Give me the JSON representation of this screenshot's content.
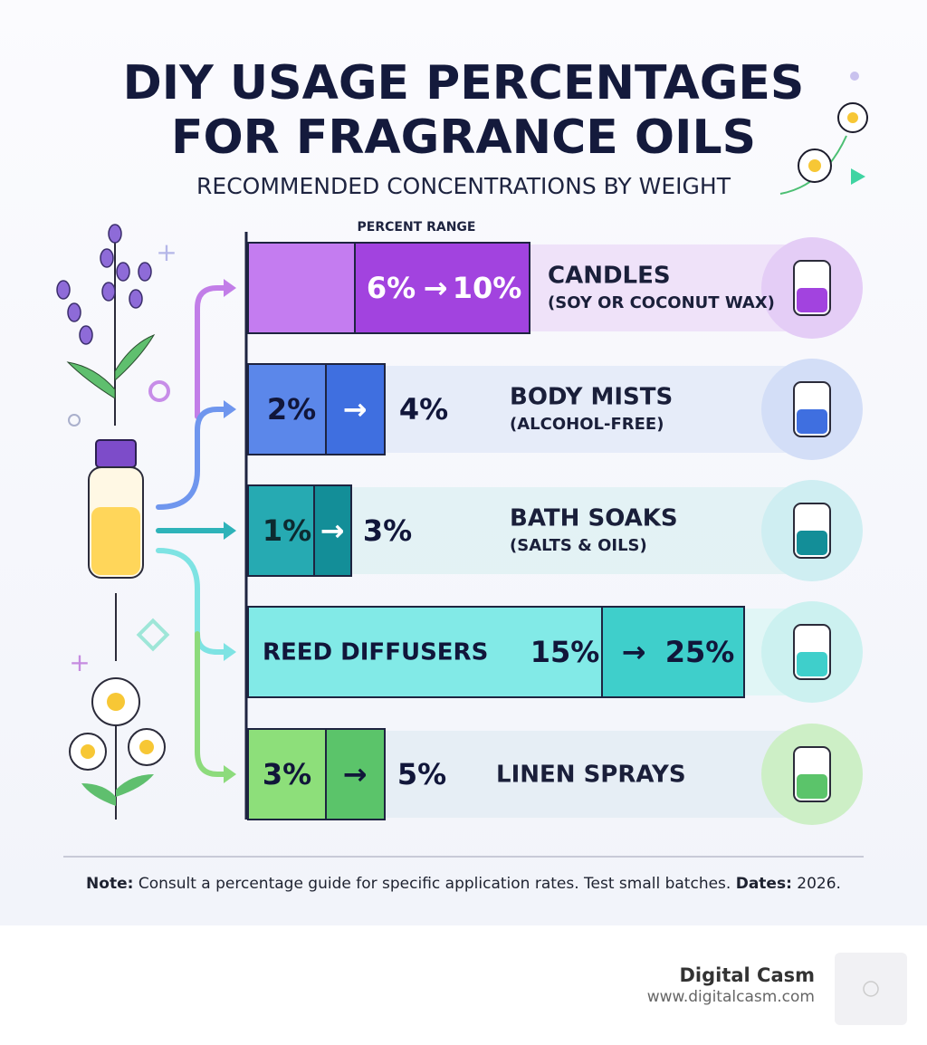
{
  "header": {
    "title_lines": [
      "DIY USAGE PERCENTAGES",
      "FOR FRAGRANCE OILS"
    ],
    "subtitle": "RECOMMENDED CONCENTRATIONS BY WEIGHT"
  },
  "axis_label": "PERCENT RANGE",
  "items": [
    {
      "name": "CANDLES",
      "detail": "(SOY OR COCONUT WAX)",
      "low": "6%",
      "arrow": "→",
      "high": "10%"
    },
    {
      "name": "BODY MISTS",
      "detail": "(ALCOHOL-FREE)",
      "low": "2%",
      "arrow": "→",
      "high": "4%"
    },
    {
      "name": "BATH SOAKS",
      "detail": "(SALTS & OILS)",
      "low": "1%",
      "arrow": "→",
      "high": "3%"
    },
    {
      "name": "REED DIFFUSERS",
      "low": "15%",
      "arrow": "→",
      "high": "25%"
    },
    {
      "name": "LINEN SPRAYS",
      "low": "3%",
      "arrow": "→",
      "high": "5%"
    }
  ],
  "note": {
    "label": "Note:",
    "text": "Consult a percentage guide for specific application rates. Test small batches.",
    "dates_label": "Dates:",
    "dates": "2026."
  },
  "brand": {
    "name": "Digital Casm",
    "url": "www.digitalcasm.com"
  }
}
